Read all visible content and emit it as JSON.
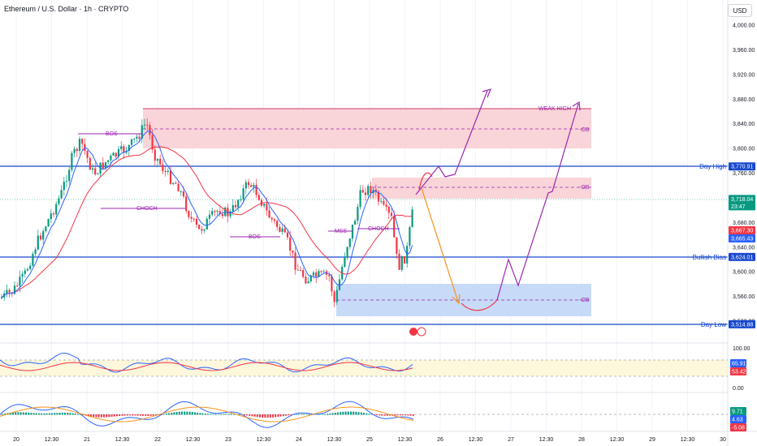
{
  "header": {
    "title": "Ethereum / U.S. Dollar · 1h · CRYPTO",
    "currency": "USD"
  },
  "price_scale": {
    "ticks": [
      {
        "price": 4000,
        "label": "4,000.00"
      },
      {
        "price": 3960,
        "label": "3,960.00"
      },
      {
        "price": 3920,
        "label": "3,920.00"
      },
      {
        "price": 3880,
        "label": "3,880.00"
      },
      {
        "price": 3840,
        "label": "3,840.00"
      },
      {
        "price": 3800,
        "label": "3,800.00"
      },
      {
        "price": 3760,
        "label": "3,760.00"
      },
      {
        "price": 3680,
        "label": "3,680.00"
      },
      {
        "price": 3640,
        "label": "3,640.00"
      },
      {
        "price": 3600,
        "label": "3,600.00"
      },
      {
        "price": 3560,
        "label": "3,560.00"
      },
      {
        "price": 3520,
        "label": "3,520.00"
      }
    ],
    "badges": [
      {
        "price": 3770.91,
        "label": "3,770.91",
        "color": "#1848cc"
      },
      {
        "price": 3718.04,
        "label": "3,718.04",
        "sub": "23:47",
        "color": "#089981"
      },
      {
        "price": 3667.3,
        "label": "3,667.30",
        "color": "#f23645"
      },
      {
        "price": 3665.43,
        "label": "3,665.43",
        "color": "#2962ff"
      },
      {
        "price": 3624.01,
        "label": "3,624.01",
        "color": "#1848cc"
      },
      {
        "price": 3514.88,
        "label": "3,514.88",
        "color": "#1848cc"
      }
    ]
  },
  "levels": [
    {
      "price": 3770.91,
      "label": "Day High"
    },
    {
      "price": 3624.01,
      "label": "Bullish Bias"
    },
    {
      "price": 3514.88,
      "label": "Day Low"
    }
  ],
  "zones": [
    {
      "label": "WEAK HIGH"
    },
    {
      "label": "OB"
    },
    {
      "label": "OB"
    },
    {
      "label": "OB"
    }
  ],
  "structure_labels": [
    "BOS",
    "CHOCH",
    "BOS",
    "MSS",
    "CHOCH"
  ],
  "time_axis": [
    "20",
    "12:30",
    "21",
    "12:30",
    "22",
    "12:30",
    "23",
    "12:30",
    "24",
    "12:30",
    "25",
    "12:30",
    "26",
    "12:30",
    "27",
    "12:30",
    "28",
    "12:30",
    "29",
    "12:30",
    "30"
  ],
  "rsi": {
    "ticks": [
      "100.00",
      "0.00"
    ],
    "badges": [
      {
        "label": "65.91",
        "color": "#2962ff"
      },
      {
        "label": "53.42",
        "color": "#f23645"
      }
    ]
  },
  "macd": {
    "badges": [
      {
        "label": "9.71",
        "color": "#089981"
      },
      {
        "label": "4.63",
        "color": "#2962ff"
      },
      {
        "label": "-5.08",
        "color": "#f23645"
      }
    ]
  },
  "colors": {
    "up": "#089981",
    "down": "#f23645",
    "level": "#1848cc",
    "annotation": "#9c27b0",
    "zone_red": "#f7c6cc",
    "zone_blue": "#bcd3f5"
  }
}
